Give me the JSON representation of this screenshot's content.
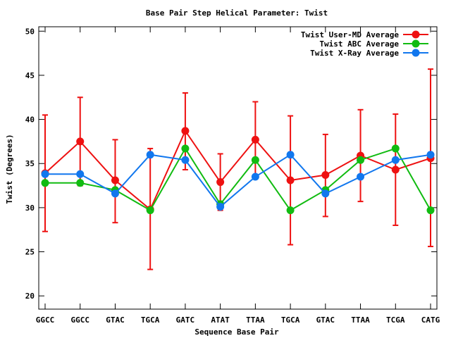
{
  "chart_data": {
    "type": "line",
    "title": "Base Pair Step Helical Parameter: Twist",
    "xlabel": "Sequence Base Pair",
    "ylabel": "Twist (Degrees)",
    "categories": [
      "GGCC",
      "GGCC",
      "GTAC",
      "TGCA",
      "GATC",
      "ATAT",
      "TTAA",
      "TGCA",
      "GTAC",
      "TTAA",
      "TCGA",
      "CATG"
    ],
    "ylim": [
      18.5,
      50.5
    ],
    "yticks": [
      20,
      25,
      30,
      35,
      40,
      45,
      50
    ],
    "grid": false,
    "legend_position": "top-right",
    "series": [
      {
        "name": "Twist User-MD Average",
        "color": "#ee1111",
        "values": [
          33.9,
          37.5,
          33.1,
          29.8,
          38.7,
          32.9,
          37.7,
          33.1,
          33.7,
          35.9,
          34.3,
          35.6
        ],
        "error_low": [
          27.3,
          32.5,
          28.3,
          23.0,
          34.3,
          29.7,
          33.3,
          25.8,
          29.0,
          30.7,
          28.0,
          25.6
        ],
        "error_high": [
          40.5,
          42.5,
          37.7,
          36.7,
          43.0,
          36.1,
          42.0,
          40.4,
          38.3,
          41.1,
          40.6,
          45.7
        ]
      },
      {
        "name": "Twist ABC Average",
        "color": "#11bb11",
        "values": [
          32.8,
          32.8,
          32.0,
          29.7,
          36.7,
          30.4,
          35.4,
          29.7,
          32.0,
          35.4,
          36.7,
          29.7
        ]
      },
      {
        "name": "Twist X-Ray Average",
        "color": "#1177ee",
        "values": [
          33.8,
          33.8,
          31.6,
          36.0,
          35.4,
          30.1,
          33.5,
          36.0,
          31.6,
          33.5,
          35.4,
          36.0
        ]
      }
    ]
  }
}
